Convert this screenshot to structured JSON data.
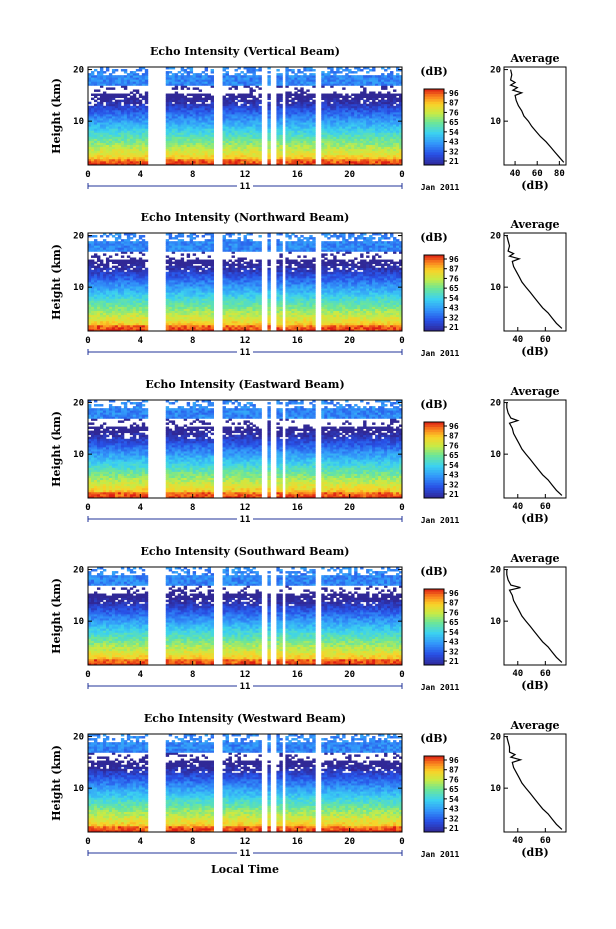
{
  "colorbar_unit": "(dB)",
  "colorbar_ticks": [
    "96",
    "87",
    "76",
    "65",
    "54",
    "43",
    "32",
    "21"
  ],
  "date_label": "Jan 2011",
  "day_label": "11",
  "x_axis_title": "Local Time",
  "y_axis_title": "Height (km)",
  "avg_title": "Average",
  "avg_xlabel": "(dB)",
  "chart_data": [
    {
      "type": "heatmap",
      "title": "Echo Intensity (Vertical Beam)",
      "xlabel": "",
      "ylabel": "Height (km)",
      "x_ticks": [
        "0",
        "4",
        "8",
        "12",
        "16",
        "20",
        "0"
      ],
      "y_ticks": [
        "20",
        "10"
      ],
      "ylim": [
        1.5,
        20.5
      ],
      "gaps_hours": [
        [
          4.6,
          6.0
        ],
        [
          9.6,
          10.2
        ],
        [
          13.3,
          13.6
        ],
        [
          14.0,
          14.3
        ],
        [
          14.8,
          15.1
        ],
        [
          17.4,
          17.8
        ]
      ],
      "color_range_db": [
        21,
        96
      ],
      "average_profile": {
        "x_ticks": [
          "40",
          "60",
          "80"
        ],
        "xlim": [
          30,
          86
        ],
        "height_km": [
          2,
          3,
          4,
          5,
          6,
          7,
          8,
          9,
          10,
          11,
          12,
          13,
          14,
          15,
          15.5,
          16,
          16.5,
          17,
          17.5,
          18,
          19,
          20
        ],
        "db": [
          84,
          80,
          76,
          72,
          68,
          63,
          59,
          55,
          52,
          48,
          46,
          43,
          41,
          40,
          46,
          38,
          42,
          36,
          40,
          36,
          37,
          36
        ]
      }
    },
    {
      "type": "heatmap",
      "title": "Echo Intensity (Northward Beam)",
      "xlabel": "",
      "ylabel": "Height (km)",
      "x_ticks": [
        "0",
        "4",
        "8",
        "12",
        "16",
        "20",
        "0"
      ],
      "y_ticks": [
        "20",
        "10"
      ],
      "ylim": [
        1.5,
        20.5
      ],
      "gaps_hours": [
        [
          4.6,
          6.0
        ],
        [
          9.6,
          10.2
        ],
        [
          13.3,
          13.6
        ],
        [
          14.0,
          14.3
        ],
        [
          14.8,
          15.1
        ],
        [
          17.4,
          17.8
        ]
      ],
      "color_range_db": [
        21,
        96
      ],
      "average_profile": {
        "x_ticks": [
          "40",
          "60"
        ],
        "xlim": [
          30,
          75
        ],
        "height_km": [
          2,
          3,
          4,
          5,
          6,
          7,
          8,
          9,
          10,
          11,
          12,
          13,
          14,
          15,
          15.5,
          16,
          16.5,
          17,
          18,
          19,
          20
        ],
        "db": [
          72,
          68,
          65,
          62,
          58,
          55,
          52,
          49,
          46,
          43,
          41,
          39,
          37,
          36,
          41,
          34,
          37,
          33,
          34,
          33,
          32
        ]
      }
    },
    {
      "type": "heatmap",
      "title": "Echo Intensity (Eastward Beam)",
      "xlabel": "",
      "ylabel": "Height (km)",
      "x_ticks": [
        "0",
        "4",
        "8",
        "12",
        "16",
        "20",
        "0"
      ],
      "y_ticks": [
        "20",
        "10"
      ],
      "ylim": [
        1.5,
        20.5
      ],
      "gaps_hours": [
        [
          4.6,
          6.0
        ],
        [
          9.6,
          10.2
        ],
        [
          13.3,
          13.6
        ],
        [
          14.0,
          14.3
        ],
        [
          14.8,
          15.1
        ],
        [
          17.4,
          17.8
        ]
      ],
      "color_range_db": [
        21,
        96
      ],
      "average_profile": {
        "x_ticks": [
          "40",
          "60"
        ],
        "xlim": [
          30,
          75
        ],
        "height_km": [
          2,
          3,
          4,
          5,
          6,
          7,
          8,
          9,
          10,
          11,
          12,
          13,
          14,
          15,
          16,
          16.5,
          17,
          18,
          19,
          20
        ],
        "db": [
          72,
          68,
          65,
          62,
          58,
          55,
          52,
          49,
          46,
          43,
          41,
          39,
          37,
          36,
          34,
          40,
          35,
          33,
          32,
          32
        ]
      }
    },
    {
      "type": "heatmap",
      "title": "Echo Intensity (Southward Beam)",
      "xlabel": "",
      "ylabel": "Height (km)",
      "x_ticks": [
        "0",
        "4",
        "8",
        "12",
        "16",
        "20",
        "0"
      ],
      "y_ticks": [
        "20",
        "10"
      ],
      "ylim": [
        1.5,
        20.5
      ],
      "gaps_hours": [
        [
          4.6,
          6.0
        ],
        [
          9.6,
          10.2
        ],
        [
          13.3,
          13.6
        ],
        [
          14.0,
          14.3
        ],
        [
          14.8,
          15.1
        ],
        [
          17.4,
          17.8
        ]
      ],
      "color_range_db": [
        21,
        96
      ],
      "average_profile": {
        "x_ticks": [
          "40",
          "60"
        ],
        "xlim": [
          30,
          75
        ],
        "height_km": [
          2,
          3,
          4,
          5,
          6,
          7,
          8,
          9,
          10,
          11,
          12,
          13,
          14,
          15,
          16,
          16.5,
          17,
          18,
          19,
          20
        ],
        "db": [
          72,
          68,
          65,
          62,
          58,
          55,
          52,
          49,
          46,
          43,
          41,
          39,
          37,
          36,
          34,
          42,
          35,
          33,
          32,
          32
        ]
      }
    },
    {
      "type": "heatmap",
      "title": "Echo Intensity (Westward Beam)",
      "xlabel": "Local Time",
      "ylabel": "Height (km)",
      "x_ticks": [
        "0",
        "4",
        "8",
        "12",
        "16",
        "20",
        "0"
      ],
      "y_ticks": [
        "20",
        "10"
      ],
      "ylim": [
        1.5,
        20.5
      ],
      "gaps_hours": [
        [
          4.6,
          6.0
        ],
        [
          9.6,
          10.2
        ],
        [
          13.3,
          13.6
        ],
        [
          14.0,
          14.3
        ],
        [
          14.8,
          15.1
        ],
        [
          17.4,
          17.8
        ]
      ],
      "color_range_db": [
        21,
        96
      ],
      "average_profile": {
        "x_ticks": [
          "40",
          "60"
        ],
        "xlim": [
          30,
          75
        ],
        "height_km": [
          2,
          3,
          4,
          5,
          6,
          7,
          8,
          9,
          10,
          11,
          12,
          13,
          14,
          15,
          15.5,
          16,
          16.5,
          17,
          18,
          19,
          20
        ],
        "db": [
          72,
          68,
          65,
          62,
          58,
          55,
          52,
          49,
          46,
          43,
          41,
          39,
          37,
          36,
          42,
          35,
          38,
          34,
          34,
          33,
          32
        ]
      }
    }
  ]
}
